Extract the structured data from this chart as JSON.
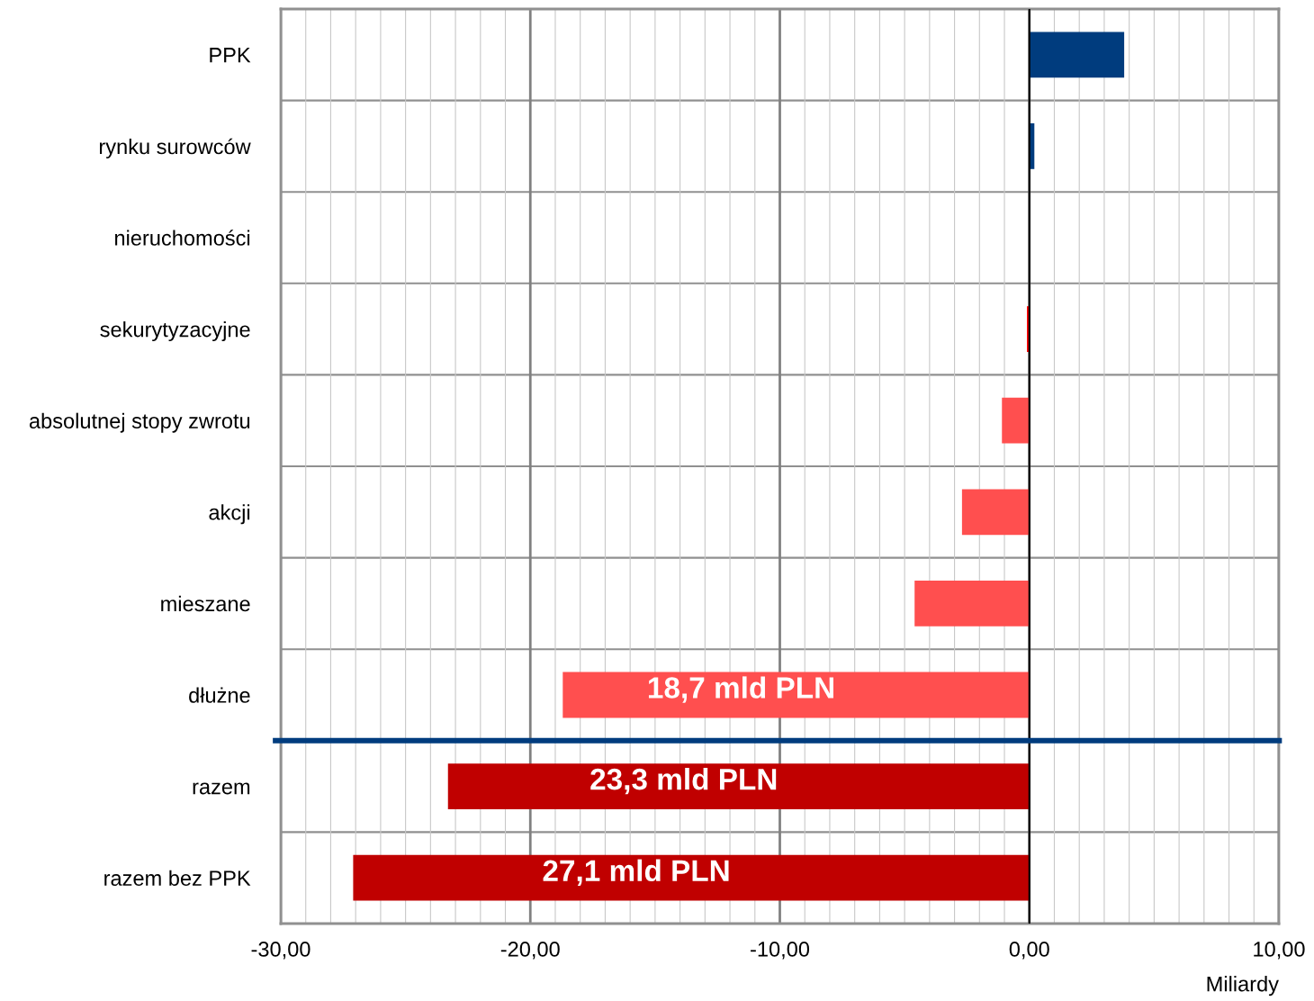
{
  "chart_data": {
    "type": "bar",
    "orientation": "horizontal",
    "categories": [
      "PPK",
      "rynku surowców",
      "nieruchomości",
      "sekurytyzacyjne",
      "absolutnej stopy zwrotu",
      "akcji",
      "mieszane",
      "dłużne",
      "razem",
      "razem bez PPK"
    ],
    "values": [
      3.8,
      0.2,
      0.0,
      -0.1,
      -1.1,
      -2.7,
      -4.6,
      -18.7,
      -23.3,
      -27.1
    ],
    "colors": [
      "#003c7e",
      "#003c7e",
      "#003c7e",
      "#ff0000",
      "#ff4f4f",
      "#ff4f4f",
      "#ff4f4f",
      "#ff4f4f",
      "#c00000",
      "#c00000"
    ],
    "annotations": [
      "18,7 mld PLN",
      "23,3 mld PLN",
      "27,1 mld PLN"
    ],
    "xlim": [
      -30,
      10
    ],
    "xticks": [
      {
        "value": -30,
        "label": "-30,00"
      },
      {
        "value": -20,
        "label": "-20,00"
      },
      {
        "value": -10,
        "label": "-10,00"
      },
      {
        "value": 0,
        "label": "0,00"
      },
      {
        "value": 10,
        "label": "10,00"
      }
    ],
    "xlabel": "Miliardy",
    "grid": "x",
    "legend": false
  }
}
